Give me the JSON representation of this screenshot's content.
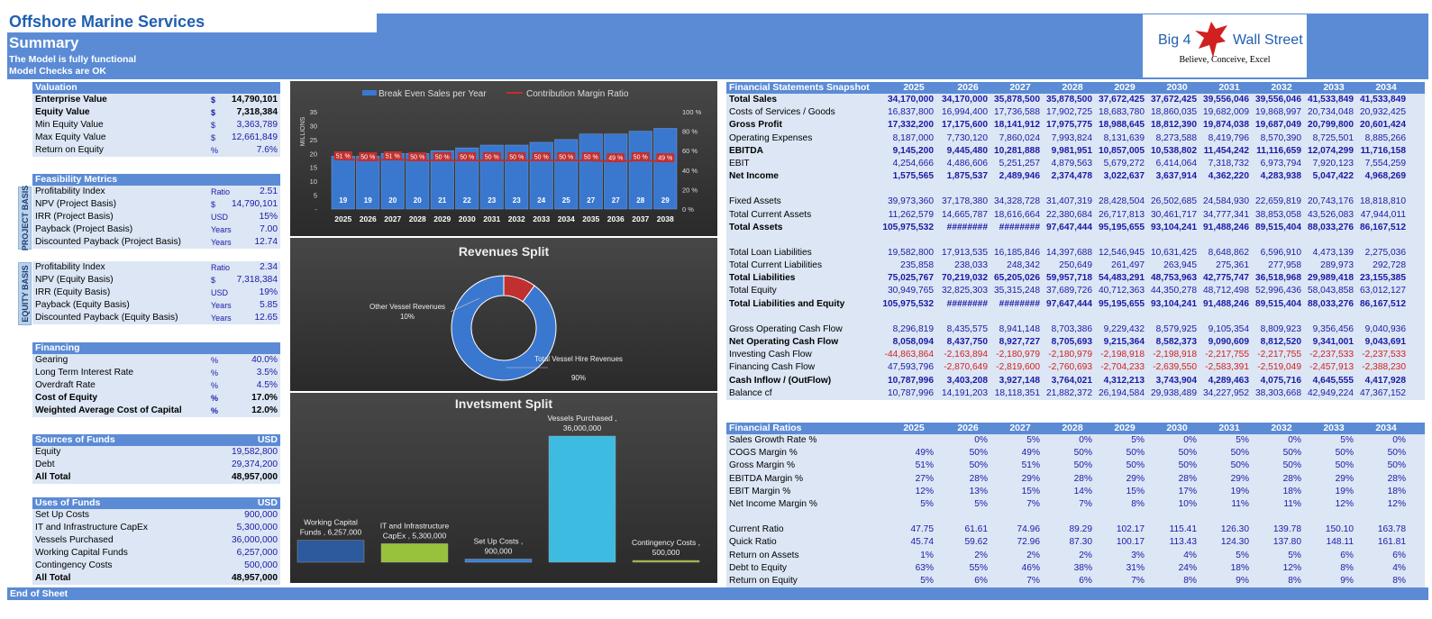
{
  "company": "Offshore Marine Services",
  "summary": {
    "title": "Summary",
    "line1": "The Model is fully functional",
    "line2": "Model Checks are OK"
  },
  "logo": {
    "left": "Big 4",
    "right": "Wall Street",
    "tagline": "Believe, Conceive, Excel"
  },
  "footer": "End of Sheet",
  "valuation": {
    "header": "Valuation",
    "rows": [
      {
        "label": "Enterprise Value",
        "unit": "$",
        "value": "14,790,101",
        "bold": true
      },
      {
        "label": "Equity Value",
        "unit": "$",
        "value": "7,318,384",
        "bold": true
      },
      {
        "label": "Min Equity Value",
        "unit": "$",
        "value": "3,363,789"
      },
      {
        "label": "Max Equity Value",
        "unit": "$",
        "value": "12,661,849"
      },
      {
        "label": "Return on Equity",
        "unit": "%",
        "value": "7.6%"
      }
    ]
  },
  "feasibility": {
    "header": "Feasibility Metrics",
    "project_label": "PROJECT BASIS",
    "equity_label": "EQUITY BASIS",
    "project_rows": [
      {
        "label": "Profitability Index",
        "unit": "Ratio",
        "value": "2.51"
      },
      {
        "label": "NPV (Project Basis)",
        "unit": "$",
        "value": "14,790,101"
      },
      {
        "label": "IRR (Project Basis)",
        "unit": "USD",
        "value": "15%"
      },
      {
        "label": "Payback  (Project Basis)",
        "unit": "Years",
        "value": "7.00"
      },
      {
        "label": "Discounted Payback  (Project Basis)",
        "unit": "Years",
        "value": "12.74"
      }
    ],
    "equity_rows": [
      {
        "label": "Profitability Index",
        "unit": "Ratio",
        "value": "2.34"
      },
      {
        "label": "NPV (Equity Basis)",
        "unit": "$",
        "value": "7,318,384"
      },
      {
        "label": "IRR (Equity Basis)",
        "unit": "USD",
        "value": "19%"
      },
      {
        "label": "Payback  (Equity Basis)",
        "unit": "Years",
        "value": "5.85"
      },
      {
        "label": "Discounted Payback  (Equity Basis)",
        "unit": "Years",
        "value": "12.65"
      }
    ]
  },
  "financing": {
    "header": "Financing",
    "rows": [
      {
        "label": "Gearing",
        "unit": "%",
        "value": "40.0%"
      },
      {
        "label": "Long Term Interest Rate",
        "unit": "%",
        "value": "3.5%"
      },
      {
        "label": "Overdraft Rate",
        "unit": "%",
        "value": "4.5%"
      },
      {
        "label": "Cost of Equity",
        "unit": "%",
        "value": "17.0%",
        "bold": true
      },
      {
        "label": "Weighted Average Cost of Capital",
        "unit": "%",
        "value": "12.0%",
        "bold": true
      }
    ]
  },
  "sources": {
    "header": "Sources of Funds",
    "hunit": "USD",
    "rows": [
      {
        "label": "Equity",
        "value": "19,582,800"
      },
      {
        "label": "Debt",
        "value": "29,374,200"
      },
      {
        "label": "All Total",
        "value": "48,957,000",
        "bold": true
      }
    ]
  },
  "uses": {
    "header": "Uses of Funds",
    "hunit": "USD",
    "rows": [
      {
        "label": "Set Up Costs",
        "value": "900,000"
      },
      {
        "label": "IT and Infrastructure CapEx",
        "value": "5,300,000"
      },
      {
        "label": "Vessels Purchased",
        "value": "36,000,000"
      },
      {
        "label": "Working Capital Funds",
        "value": "6,257,000"
      },
      {
        "label": "Contingency Costs",
        "value": "500,000"
      },
      {
        "label": "All Total",
        "value": "48,957,000",
        "bold": true
      }
    ]
  },
  "chart_data": [
    {
      "type": "bar",
      "title": "",
      "legend": [
        "Break Even Sales per Year",
        "Contribution Margin Ratio"
      ],
      "categories": [
        "2025",
        "2026",
        "2027",
        "2028",
        "2029",
        "2030",
        "2031",
        "2032",
        "2033",
        "2034",
        "2035",
        "2036",
        "2037",
        "2038"
      ],
      "series": [
        {
          "name": "Break Even Sales per Year",
          "values": [
            19,
            19,
            20,
            20,
            21,
            22,
            23,
            23,
            24,
            25,
            27,
            27,
            28,
            29
          ]
        },
        {
          "name": "Contribution Margin Ratio",
          "values": [
            51,
            50,
            51,
            50,
            50,
            50,
            50,
            50,
            50,
            50,
            50,
            49,
            50,
            49
          ]
        }
      ],
      "margin_labels": [
        "51 %",
        "50 %",
        "51 %",
        "50 %",
        "50 %",
        "50 %",
        "50 %",
        "50 %",
        "50 %",
        "50 %",
        "50 %",
        "49 %",
        "50 %",
        "49 %"
      ],
      "ylabel": "MILLIONS",
      "yticks": [
        "35",
        "30",
        "25",
        "20",
        "15",
        "10",
        "5",
        "-"
      ],
      "y2ticks": [
        "100 %",
        "80 %",
        "60 %",
        "40 %",
        "20 %",
        "0 %"
      ],
      "ylim": [
        0,
        35
      ],
      "y2lim": [
        0,
        100
      ],
      "colors": {
        "bar": "#3a78cf",
        "line": "#c03030"
      }
    },
    {
      "type": "pie",
      "title": "Revenues Split",
      "slices": [
        {
          "label": "Other Vessel Revenues",
          "pct_label": "10%",
          "value": 10
        },
        {
          "label": "Total Vessel Hire Revenues",
          "pct_label": "90%",
          "value": 90
        }
      ],
      "colors": [
        "#c03030",
        "#3a78cf"
      ]
    },
    {
      "type": "bar",
      "title": "Invetsment Split",
      "categories": [
        "Working Capital Funds",
        "IT and Infrastructure CapEx",
        "Set Up Costs",
        "Vessels Purchased",
        "Contingency Costs"
      ],
      "values": [
        6257000,
        5300000,
        900000,
        36000000,
        500000
      ],
      "labels": [
        [
          "Working Capital",
          "Funds , 6,257,000"
        ],
        [
          "IT and Infrastructure",
          "CapEx , 5,300,000"
        ],
        [
          "Set Up Costs ,",
          "900,000"
        ],
        [
          "Vessels Purchased ,",
          "36,000,000"
        ],
        [
          "Contingency Costs ,",
          "500,000"
        ]
      ],
      "colors": [
        "#2c5a9c",
        "#98c23c",
        "#3a7fd5",
        "#3ebbe0",
        "#9ab832"
      ],
      "ylim": [
        0,
        36000000
      ]
    }
  ],
  "fs": {
    "header": "Financial Statements Snapshot",
    "years": [
      "2025",
      "2026",
      "2027",
      "2028",
      "2029",
      "2030",
      "2031",
      "2032",
      "2033",
      "2034"
    ],
    "groups": [
      [
        {
          "label": "Total Sales",
          "bold": true,
          "v": [
            "34,170,000",
            "34,170,000",
            "35,878,500",
            "35,878,500",
            "37,672,425",
            "37,672,425",
            "39,556,046",
            "39,556,046",
            "41,533,849",
            "41,533,849"
          ]
        },
        {
          "label": "Costs of Services / Goods",
          "v": [
            "16,837,800",
            "16,994,400",
            "17,736,588",
            "17,902,725",
            "18,683,780",
            "18,860,035",
            "19,682,009",
            "19,868,997",
            "20,734,048",
            "20,932,425"
          ]
        },
        {
          "label": "Gross Profit",
          "bold": true,
          "v": [
            "17,332,200",
            "17,175,600",
            "18,141,912",
            "17,975,775",
            "18,988,645",
            "18,812,390",
            "19,874,038",
            "19,687,049",
            "20,799,800",
            "20,601,424"
          ]
        },
        {
          "label": "Operating Expenses",
          "v": [
            "8,187,000",
            "7,730,120",
            "7,860,024",
            "7,993,824",
            "8,131,639",
            "8,273,588",
            "8,419,796",
            "8,570,390",
            "8,725,501",
            "8,885,266"
          ]
        },
        {
          "label": "EBITDA",
          "bold": true,
          "v": [
            "9,145,200",
            "9,445,480",
            "10,281,888",
            "9,981,951",
            "10,857,005",
            "10,538,802",
            "11,454,242",
            "11,116,659",
            "12,074,299",
            "11,716,158"
          ]
        },
        {
          "label": "EBIT",
          "v": [
            "4,254,666",
            "4,486,606",
            "5,251,257",
            "4,879,563",
            "5,679,272",
            "6,414,064",
            "7,318,732",
            "6,973,794",
            "7,920,123",
            "7,554,259"
          ]
        },
        {
          "label": "Net Income",
          "bold": true,
          "v": [
            "1,575,565",
            "1,875,537",
            "2,489,946",
            "2,374,478",
            "3,022,637",
            "3,637,914",
            "4,362,220",
            "4,283,938",
            "5,047,422",
            "4,968,269"
          ]
        }
      ],
      [
        {
          "label": "Fixed Assets",
          "v": [
            "39,973,360",
            "37,178,380",
            "34,328,728",
            "31,407,319",
            "28,428,504",
            "26,502,685",
            "24,584,930",
            "22,659,819",
            "20,743,176",
            "18,818,810"
          ]
        },
        {
          "label": "Total Current Assets",
          "v": [
            "11,262,579",
            "14,665,787",
            "18,616,664",
            "22,380,684",
            "26,717,813",
            "30,461,717",
            "34,777,341",
            "38,853,058",
            "43,526,083",
            "47,944,011"
          ]
        },
        {
          "label": "Total Assets",
          "bold": true,
          "v": [
            "105,975,532",
            "########",
            "########",
            "97,647,444",
            "95,195,655",
            "93,104,241",
            "91,488,246",
            "89,515,404",
            "88,033,276",
            "86,167,512"
          ]
        }
      ],
      [
        {
          "label": "Total Loan Liabilities",
          "v": [
            "19,582,800",
            "17,913,535",
            "16,185,846",
            "14,397,688",
            "12,546,945",
            "10,631,425",
            "8,648,862",
            "6,596,910",
            "4,473,139",
            "2,275,036"
          ]
        },
        {
          "label": "Total Current Liabilities",
          "v": [
            "235,858",
            "238,033",
            "248,342",
            "250,649",
            "261,497",
            "263,945",
            "275,361",
            "277,958",
            "289,973",
            "292,728"
          ]
        },
        {
          "label": "Total Liabilities",
          "bold": true,
          "v": [
            "75,025,767",
            "70,219,032",
            "65,205,026",
            "59,957,718",
            "54,483,291",
            "48,753,963",
            "42,775,747",
            "36,518,968",
            "29,989,418",
            "23,155,385"
          ]
        },
        {
          "label": "Total Equity",
          "v": [
            "30,949,765",
            "32,825,303",
            "35,315,248",
            "37,689,726",
            "40,712,363",
            "44,350,278",
            "48,712,498",
            "52,996,436",
            "58,043,858",
            "63,012,127"
          ]
        },
        {
          "label": "Total Liabilities and Equity",
          "bold": true,
          "v": [
            "105,975,532",
            "########",
            "########",
            "97,647,444",
            "95,195,655",
            "93,104,241",
            "91,488,246",
            "89,515,404",
            "88,033,276",
            "86,167,512"
          ]
        }
      ],
      [
        {
          "label": "Gross Operating Cash Flow",
          "v": [
            "8,296,819",
            "8,435,575",
            "8,941,148",
            "8,703,386",
            "9,229,432",
            "8,579,925",
            "9,105,354",
            "8,809,923",
            "9,356,456",
            "9,040,936"
          ]
        },
        {
          "label": "Net Operating Cash Flow",
          "bold": true,
          "v": [
            "8,058,094",
            "8,437,750",
            "8,927,727",
            "8,705,693",
            "9,215,364",
            "8,582,373",
            "9,090,609",
            "8,812,520",
            "9,341,001",
            "9,043,691"
          ]
        },
        {
          "label": "Investing Cash Flow",
          "neg": true,
          "v": [
            "-44,863,864",
            "-2,163,894",
            "-2,180,979",
            "-2,180,979",
            "-2,198,918",
            "-2,198,918",
            "-2,217,755",
            "-2,217,755",
            "-2,237,533",
            "-2,237,533"
          ]
        },
        {
          "label": "Financing Cash Flow",
          "mixed": true,
          "v": [
            "47,593,796",
            "-2,870,649",
            "-2,819,600",
            "-2,760,693",
            "-2,704,233",
            "-2,639,550",
            "-2,583,391",
            "-2,519,049",
            "-2,457,913",
            "-2,388,230"
          ]
        },
        {
          "label": "Cash Inflow / (OutFlow)",
          "bold": true,
          "v": [
            "10,787,996",
            "3,403,208",
            "3,927,148",
            "3,764,021",
            "4,312,213",
            "3,743,904",
            "4,289,463",
            "4,075,716",
            "4,645,555",
            "4,417,928"
          ]
        },
        {
          "label": "Balance cf",
          "v": [
            "10,787,996",
            "14,191,203",
            "18,118,351",
            "21,882,372",
            "26,194,584",
            "29,938,489",
            "34,227,952",
            "38,303,668",
            "42,949,224",
            "47,367,152"
          ]
        }
      ]
    ]
  },
  "ratios": {
    "header": "Financial Ratios",
    "years": [
      "2025",
      "2026",
      "2027",
      "2028",
      "2029",
      "2030",
      "2031",
      "2032",
      "2033",
      "2034"
    ],
    "groups": [
      [
        {
          "label": "Sales Growth Rate %",
          "v": [
            "",
            "0%",
            "5%",
            "0%",
            "5%",
            "0%",
            "5%",
            "0%",
            "5%",
            "0%"
          ]
        },
        {
          "label": "COGS Margin %",
          "v": [
            "49%",
            "50%",
            "49%",
            "50%",
            "50%",
            "50%",
            "50%",
            "50%",
            "50%",
            "50%"
          ]
        },
        {
          "label": "Gross Margin %",
          "v": [
            "51%",
            "50%",
            "51%",
            "50%",
            "50%",
            "50%",
            "50%",
            "50%",
            "50%",
            "50%"
          ]
        },
        {
          "label": "EBITDA Margin %",
          "v": [
            "27%",
            "28%",
            "29%",
            "28%",
            "29%",
            "28%",
            "29%",
            "28%",
            "29%",
            "28%"
          ]
        },
        {
          "label": "EBIT Margin %",
          "v": [
            "12%",
            "13%",
            "15%",
            "14%",
            "15%",
            "17%",
            "19%",
            "18%",
            "19%",
            "18%"
          ]
        },
        {
          "label": "Net Income Margin %",
          "v": [
            "5%",
            "5%",
            "7%",
            "7%",
            "8%",
            "10%",
            "11%",
            "11%",
            "12%",
            "12%"
          ]
        }
      ],
      [
        {
          "label": "Current Ratio",
          "v": [
            "47.75",
            "61.61",
            "74.96",
            "89.29",
            "102.17",
            "115.41",
            "126.30",
            "139.78",
            "150.10",
            "163.78"
          ]
        },
        {
          "label": "Quick Ratio",
          "v": [
            "45.74",
            "59.62",
            "72.96",
            "87.30",
            "100.17",
            "113.43",
            "124.30",
            "137.80",
            "148.11",
            "161.81"
          ]
        },
        {
          "label": "Return on Assets",
          "v": [
            "1%",
            "2%",
            "2%",
            "2%",
            "3%",
            "4%",
            "5%",
            "5%",
            "6%",
            "6%"
          ]
        },
        {
          "label": "Debt to Equity",
          "v": [
            "63%",
            "55%",
            "46%",
            "38%",
            "31%",
            "24%",
            "18%",
            "12%",
            "8%",
            "4%"
          ]
        },
        {
          "label": "Return on Equity",
          "v": [
            "5%",
            "6%",
            "7%",
            "6%",
            "7%",
            "8%",
            "9%",
            "8%",
            "9%",
            "8%"
          ]
        }
      ]
    ]
  }
}
